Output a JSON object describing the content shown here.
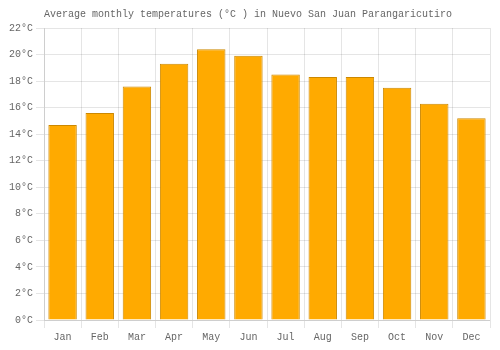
{
  "chart_data": {
    "type": "bar",
    "title": "Average monthly temperatures (°C ) in Nuevo San Juan Parangaricutiro",
    "categories": [
      "Jan",
      "Feb",
      "Mar",
      "Apr",
      "May",
      "Jun",
      "Jul",
      "Aug",
      "Sep",
      "Oct",
      "Nov",
      "Dec"
    ],
    "values": [
      14.7,
      15.6,
      17.6,
      19.3,
      20.4,
      19.9,
      18.5,
      18.3,
      18.3,
      17.5,
      16.3,
      15.2
    ],
    "color": "#FFAA00",
    "ylim": [
      0,
      22
    ],
    "yticks": [
      {
        "value": 0,
        "label": "0°C"
      },
      {
        "value": 2,
        "label": "2°C"
      },
      {
        "value": 4,
        "label": "4°C"
      },
      {
        "value": 6,
        "label": "6°C"
      },
      {
        "value": 8,
        "label": "8°C"
      },
      {
        "value": 10,
        "label": "10°C"
      },
      {
        "value": 12,
        "label": "12°C"
      },
      {
        "value": 14,
        "label": "14°C"
      },
      {
        "value": 16,
        "label": "16°C"
      },
      {
        "value": 18,
        "label": "18°C"
      },
      {
        "value": 20,
        "label": "20°C"
      },
      {
        "value": 22,
        "label": "22°C"
      }
    ],
    "grid": true
  }
}
